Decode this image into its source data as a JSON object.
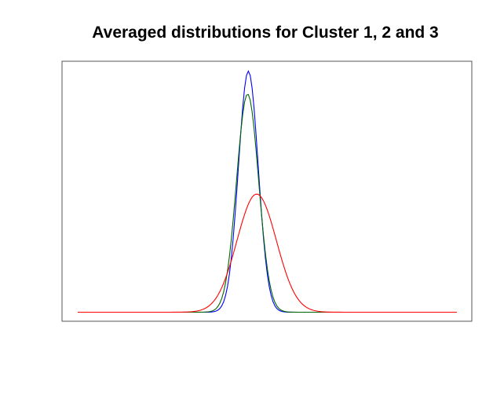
{
  "chart_data": {
    "type": "line",
    "title": "Averaged distributions for Cluster 1, 2 and 3",
    "xlabel": "",
    "ylabel": "",
    "axes_visible": false,
    "grid": false,
    "legend": "none",
    "xlim": [
      0,
      100
    ],
    "ylim": [
      0,
      1
    ],
    "x_step": 0.5,
    "series": [
      {
        "color": "#0000ff",
        "peak_x": 45.0,
        "peak_y": 1.0,
        "sd": 2.6
      },
      {
        "color": "#006400",
        "peak_x": 44.8,
        "peak_y": 0.905,
        "sd": 2.9
      },
      {
        "color": "#ff0000",
        "peak_x": 47.2,
        "peak_y": 0.49,
        "sd": 5.2
      }
    ]
  }
}
